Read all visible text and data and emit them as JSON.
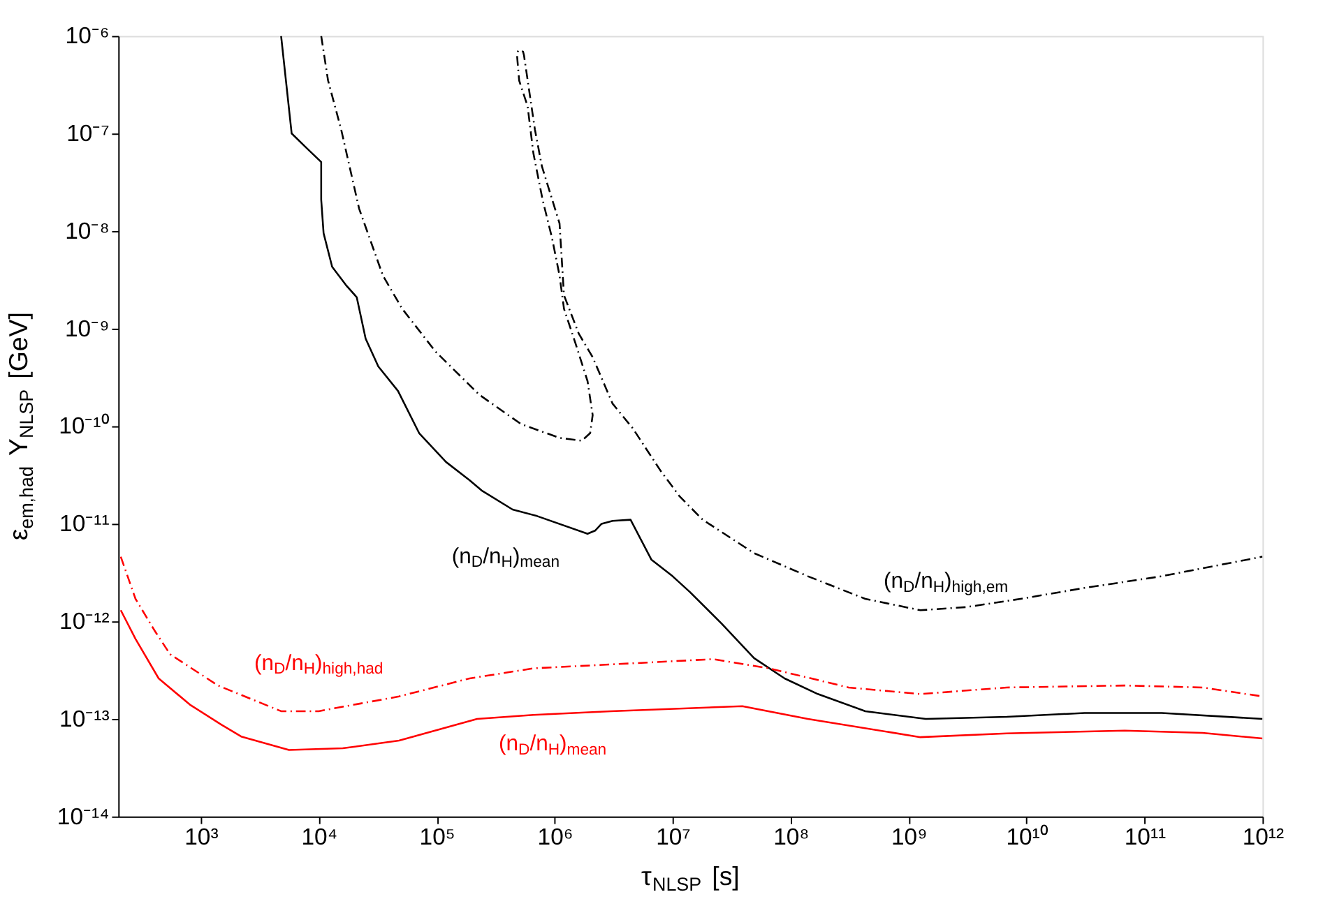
{
  "chart_data": {
    "type": "line",
    "xlabel": "τ$_{NLSP}$ [s]",
    "ylabel": "ε$_{em,had}$ Y$_{NLSP}$ [GeV]",
    "log": "xy",
    "grid": false,
    "marker": "none",
    "xlim": [
      200,
      1000000000000.0
    ],
    "ylim": [
      1e-14,
      1e-06
    ],
    "xticks": [
      {
        "value": 1000.0,
        "label": "10³"
      },
      {
        "value": 10000.0,
        "label": "10⁴"
      },
      {
        "value": 100000.0,
        "label": "10⁵"
      },
      {
        "value": 1000000.0,
        "label": "10⁶"
      },
      {
        "value": 10000000.0,
        "label": "10⁷"
      },
      {
        "value": 100000000.0,
        "label": "10⁸"
      },
      {
        "value": 1000000000.0,
        "label": "10⁹"
      },
      {
        "value": 10000000000.0,
        "label": "10¹⁰"
      },
      {
        "value": 100000000000.0,
        "label": "10¹¹"
      },
      {
        "value": 1000000000000.0,
        "label": "10¹²"
      }
    ],
    "yticks": [
      {
        "value": 1e-14,
        "label": "10⁻¹⁴"
      },
      {
        "value": 1e-13,
        "label": "10⁻¹³"
      },
      {
        "value": 1e-12,
        "label": "10⁻¹²"
      },
      {
        "value": 1e-11,
        "label": "10⁻¹¹"
      },
      {
        "value": 1e-10,
        "label": "10⁻¹⁰"
      },
      {
        "value": 1e-09,
        "label": "10⁻⁹"
      },
      {
        "value": 1e-08,
        "label": "10⁻⁸"
      },
      {
        "value": 1e-07,
        "label": "10⁻⁷"
      },
      {
        "value": 1e-06,
        "label": "10⁻⁶"
      }
    ],
    "series": [
      {
        "name": "(n$_{D}$/n$_{H}$)$_{mean}$",
        "color": "#000000",
        "line_style": "solid",
        "x": [
          4800.0,
          5900.0,
          7900.0,
          10500.0,
          10500.0,
          11000.0,
          13000.0,
          17000.0,
          21000.0,
          25000.0,
          32000.0,
          47000.0,
          71000.0,
          120000.0,
          190000.0,
          240000.0,
          440000.0,
          710000.0,
          1900000.0,
          2200000.0,
          2500000.0,
          3100000.0,
          4400000.0,
          6600000.0,
          10000000.0,
          14000000.0,
          26000000.0,
          49000000.0,
          89000000.0,
          170000000.0,
          430000000.0,
          1400000000.0,
          6800000000.0,
          31000000000.0,
          140000000000.0,
          1000000000000.0
        ],
        "values": [
          1e-06,
          1e-07,
          7.1e-08,
          5.1e-08,
          2.1e-08,
          9.5e-09,
          4.3e-09,
          2.8e-09,
          2.1e-09,
          7.9e-10,
          4.1e-10,
          2.3e-10,
          8.5e-11,
          4.3e-11,
          2.8e-11,
          2.2e-11,
          1.4e-11,
          1.2e-11,
          7.9e-12,
          8.5e-12,
          1e-11,
          1.07e-11,
          1.1e-11,
          4.3e-12,
          2.9e-12,
          2e-12,
          9.5e-13,
          4.2e-13,
          2.6e-13,
          1.8e-13,
          1.2e-13,
          1e-13,
          1.05e-13,
          1.15e-13,
          1.15e-13,
          1e-13
        ]
      },
      {
        "name": "(n$_{D}$/n$_{H}$)$_{high,em}$",
        "color": "#000000",
        "line_style": "dashed",
        "x": [
          10500.0,
          12000.0,
          15500.0,
          22000.0,
          35000.0,
          51000.0,
          98000.0,
          230000.0,
          520000.0,
          1100000.0,
          1700000.0,
          2000000.0,
          2100000.0,
          1900000.0,
          1500000.0,
          1200000.0,
          1100000.0,
          950000.0,
          790000.0,
          660000.0,
          590000.0,
          500000.0,
          480000.0,
          490000.0,
          540000.0,
          550000.0,
          680000.0,
          780000.0,
          1100000.0,
          1200000.0,
          1600000.0,
          2100000.0,
          3100000.0,
          4600000.0,
          7900000.0,
          11500000.0,
          18000000.0,
          49000000.0,
          140000000.0,
          430000000.0,
          1260000000.0,
          3100000000.0,
          8900000000.0,
          31000000000.0,
          140000000000.0,
          1000000000000.0
        ],
        "values": [
          1e-06,
          3.5e-07,
          1.1e-07,
          1.7e-08,
          3.5e-09,
          1.6e-09,
          5.8e-10,
          2.1e-10,
          1.05e-10,
          7.6e-11,
          7.1e-11,
          8.5e-11,
          1.3e-10,
          2.9e-10,
          7.1e-10,
          1.6e-09,
          3.5e-09,
          8.5e-09,
          2.1e-08,
          6.3e-08,
          1.9e-07,
          3.5e-07,
          6.3e-07,
          7.1e-07,
          6.9e-07,
          6.3e-07,
          1.1e-07,
          4.6e-08,
          1.2e-08,
          2.2e-09,
          8.9e-10,
          5.1e-10,
          1.7e-10,
          9.5e-11,
          3.5e-11,
          1.9e-11,
          1.1e-11,
          5e-12,
          2.9e-12,
          1.7e-12,
          1.3e-12,
          1.4e-12,
          1.7e-12,
          2.2e-12,
          2.9e-12,
          4.6e-12
        ]
      },
      {
        "name": "(n$_{D}$/n$_{H}$)$_{high,had}$",
        "color": "#ff0000",
        "line_style": "dashed",
        "x": [
          210.0,
          280.0,
          410.0,
          550.0,
          1400.0,
          4800.0,
          10000.0,
          48000.0,
          190000.0,
          660000.0,
          6600000.0,
          22000000.0,
          66000000.0,
          310000000.0,
          1260000000.0,
          6800000000.0,
          68000000000.0,
          310000000000.0,
          1000000000000.0
        ],
        "values": [
          4.6e-12,
          1.7e-12,
          7.9e-13,
          4.6e-13,
          2.2e-13,
          1.2e-13,
          1.2e-13,
          1.7e-13,
          2.6e-13,
          3.3e-13,
          3.8e-13,
          4.1e-13,
          3.3e-13,
          2.1e-13,
          1.8e-13,
          2.1e-13,
          2.2e-13,
          2.1e-13,
          1.7e-13
        ]
      },
      {
        "name": "(n$_{D}$/n$_{H}$)$_{mean}$",
        "color": "#ff0000",
        "line_style": "solid",
        "x": [
          210.0,
          280.0,
          440.0,
          810.0,
          1500.0,
          2200.0,
          5600.0,
          16000.0,
          48000.0,
          220000.0,
          660000.0,
          3000000.0,
          39000000.0,
          140000000.0,
          1260000000.0,
          6800000000.0,
          68000000000.0,
          310000000000.0,
          1000000000000.0
        ],
        "values": [
          1.3e-12,
          6.6e-13,
          2.6e-13,
          1.4e-13,
          8.7e-14,
          6.6e-14,
          4.8e-14,
          5e-14,
          6e-14,
          1e-13,
          1.1e-13,
          1.2e-13,
          1.35e-13,
          1e-13,
          6.5e-14,
          7.1e-14,
          7.6e-14,
          7.2e-14,
          6.3e-14
        ]
      }
    ]
  }
}
